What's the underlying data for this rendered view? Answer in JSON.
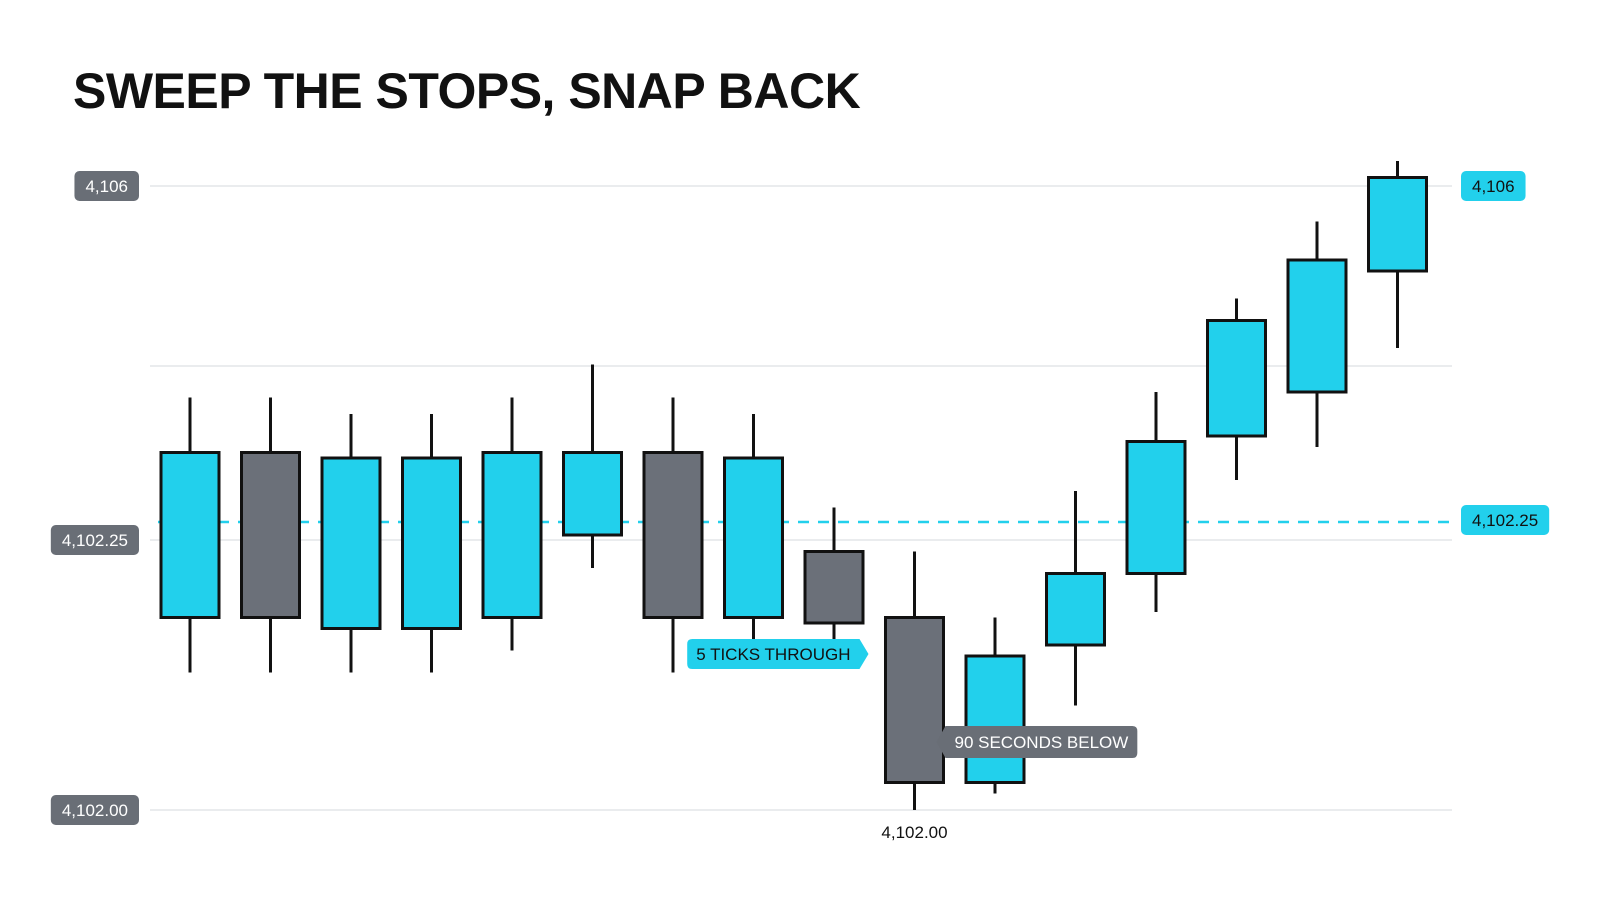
{
  "chart_data": {
    "type": "candlestick",
    "title": "SWEEP THE STOPS, SNAP BACK",
    "y_axis_labels": [
      {
        "value": 4106,
        "text": "4,106"
      },
      {
        "value": 4102.25,
        "text": "4,102.25"
      },
      {
        "value": 4102.0,
        "text": "4,102.00"
      }
    ],
    "right_labels": [
      {
        "value": 4106,
        "text": "4,106"
      },
      {
        "value": 4102.25,
        "text": "4,102.25"
      }
    ],
    "level_line": {
      "value": 4102.25,
      "style": "dashed"
    },
    "candles": [
      {
        "open": 4102.35,
        "high": 4102.75,
        "low": 4102.25,
        "close": 4102.65,
        "color": "cyan"
      },
      {
        "open": 4102.35,
        "high": 4102.75,
        "low": 4102.25,
        "close": 4102.65,
        "color": "gray"
      },
      {
        "open": 4102.33,
        "high": 4102.72,
        "low": 4102.25,
        "close": 4102.64,
        "color": "cyan"
      },
      {
        "open": 4102.33,
        "high": 4102.72,
        "low": 4102.25,
        "close": 4102.64,
        "color": "cyan"
      },
      {
        "open": 4102.35,
        "high": 4102.75,
        "low": 4102.29,
        "close": 4102.65,
        "color": "cyan"
      },
      {
        "open": 4102.5,
        "high": 4102.81,
        "low": 4102.44,
        "close": 4102.65,
        "color": "cyan"
      },
      {
        "open": 4102.35,
        "high": 4102.75,
        "low": 4102.25,
        "close": 4102.65,
        "color": "gray"
      },
      {
        "open": 4102.35,
        "high": 4102.72,
        "low": 4102.27,
        "close": 4102.64,
        "color": "cyan"
      },
      {
        "open": 4102.34,
        "high": 4102.55,
        "low": 4102.27,
        "close": 4102.47,
        "color": "gray"
      },
      {
        "open": 4102.35,
        "high": 4102.47,
        "low": 4102.0,
        "close": 4102.05,
        "color": "gray"
      },
      {
        "open": 4102.05,
        "high": 4102.35,
        "low": 4102.03,
        "close": 4102.28,
        "color": "cyan"
      },
      {
        "open": 4102.3,
        "high": 4102.58,
        "low": 4102.19,
        "close": 4102.43,
        "color": "cyan"
      },
      {
        "open": 4102.43,
        "high": 4102.76,
        "low": 4102.36,
        "close": 4102.67,
        "color": "cyan"
      },
      {
        "open": 4102.68,
        "high": 4102.93,
        "low": 4102.6,
        "close": 4102.89,
        "color": "cyan"
      },
      {
        "open": 4102.76,
        "high": 4103.07,
        "low": 4102.66,
        "close": 4103.0,
        "color": "cyan"
      },
      {
        "open": 4102.98,
        "high": 4103.18,
        "low": 4102.84,
        "close": 4103.15,
        "color": "cyan"
      }
    ],
    "annotations": [
      {
        "text": "5 TICKS THROUGH",
        "candle": 9,
        "style": "cyan"
      },
      {
        "text": "90 SECONDS BELOW",
        "candle": 9,
        "style": "gray"
      },
      {
        "text": "4,102.00",
        "candle": 9,
        "style": "plain"
      }
    ],
    "grid": true,
    "legend": "none"
  }
}
